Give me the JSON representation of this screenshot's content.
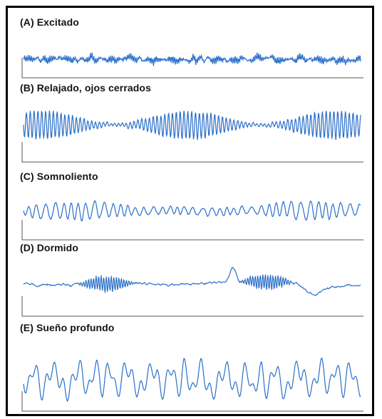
{
  "colors": {
    "trace": "#2a6fc9",
    "axis": "#555555",
    "label": "#141414",
    "border": "#000000"
  },
  "panels": [
    {
      "id": "a",
      "label": "(A) Excitado",
      "pattern": "beta"
    },
    {
      "id": "b",
      "label": "(B) Relajado, ojos cerrados",
      "pattern": "alpha"
    },
    {
      "id": "c",
      "label": "(C) Somnoliento",
      "pattern": "theta"
    },
    {
      "id": "d",
      "label": "(D) Dormido",
      "pattern": "spindles"
    },
    {
      "id": "e",
      "label": "(E) Sueño profundo",
      "pattern": "delta"
    }
  ]
}
